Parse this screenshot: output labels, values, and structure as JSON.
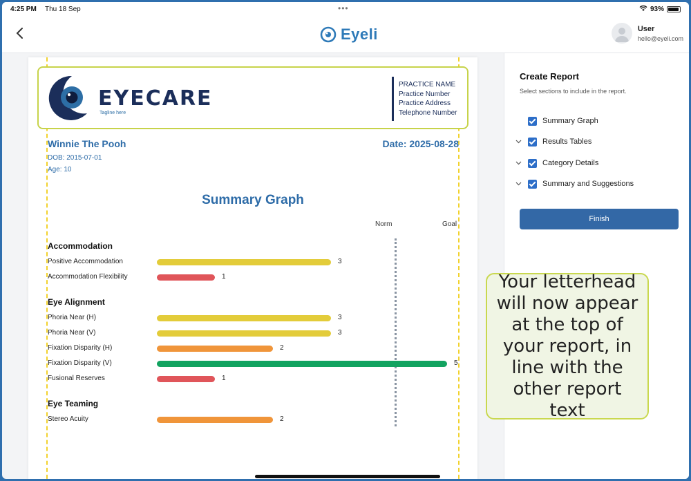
{
  "status_bar": {
    "time": "4:25 PM",
    "date": "Thu 18 Sep",
    "battery": "93%",
    "battery_level": 0.93
  },
  "header": {
    "app_name": "Eyeli",
    "user_name": "User",
    "user_email": "hello@eyeli.com"
  },
  "letterhead": {
    "brand": "EYECARE",
    "tagline": "Tagline here",
    "details": [
      "PRACTICE NAME",
      "Practice Number",
      "Practice Address",
      "Telephone Number"
    ]
  },
  "patient": {
    "name": "Winnie The Pooh",
    "date": "Date: 2025-08-28",
    "dob": "DOB: 2015-07-01",
    "age": "Age: 10"
  },
  "chart_data": {
    "type": "bar",
    "title": "Summary Graph",
    "reference_labels": [
      "Norm",
      "Goal"
    ],
    "xlim": [
      0,
      5
    ],
    "norm": 4,
    "goal": 5,
    "groups": [
      {
        "name": "Accommodation",
        "items": [
          {
            "label": "Positive Accommodation",
            "value": 3,
            "color": "#e3cc3a"
          },
          {
            "label": "Accommodation Flexibility",
            "value": 1,
            "color": "#e0555a"
          }
        ]
      },
      {
        "name": "Eye Alignment",
        "items": [
          {
            "label": "Phoria Near (H)",
            "value": 3,
            "color": "#e3cc3a"
          },
          {
            "label": "Phoria Near (V)",
            "value": 3,
            "color": "#e3cc3a"
          },
          {
            "label": "Fixation Disparity (H)",
            "value": 2,
            "color": "#f0953a"
          },
          {
            "label": "Fixation Disparity (V)",
            "value": 5,
            "color": "#12a360"
          },
          {
            "label": "Fusional Reserves",
            "value": 1,
            "color": "#e0555a"
          }
        ]
      },
      {
        "name": "Eye Teaming",
        "items": [
          {
            "label": "Stereo Acuity",
            "value": 2,
            "color": "#f0953a"
          }
        ]
      }
    ]
  },
  "panel": {
    "title": "Create Report",
    "subtitle": "Select sections to include in the report.",
    "options": [
      {
        "label": "Summary Graph",
        "checked": true,
        "expandable": false
      },
      {
        "label": "Results Tables",
        "checked": true,
        "expandable": true
      },
      {
        "label": "Category Details",
        "checked": true,
        "expandable": true
      },
      {
        "label": "Summary and Suggestions",
        "checked": true,
        "expandable": true
      }
    ],
    "finish_label": "Finish"
  },
  "tooltip": {
    "text": "Your letterhead will now appear at the top of your report, in line with the other report text"
  }
}
